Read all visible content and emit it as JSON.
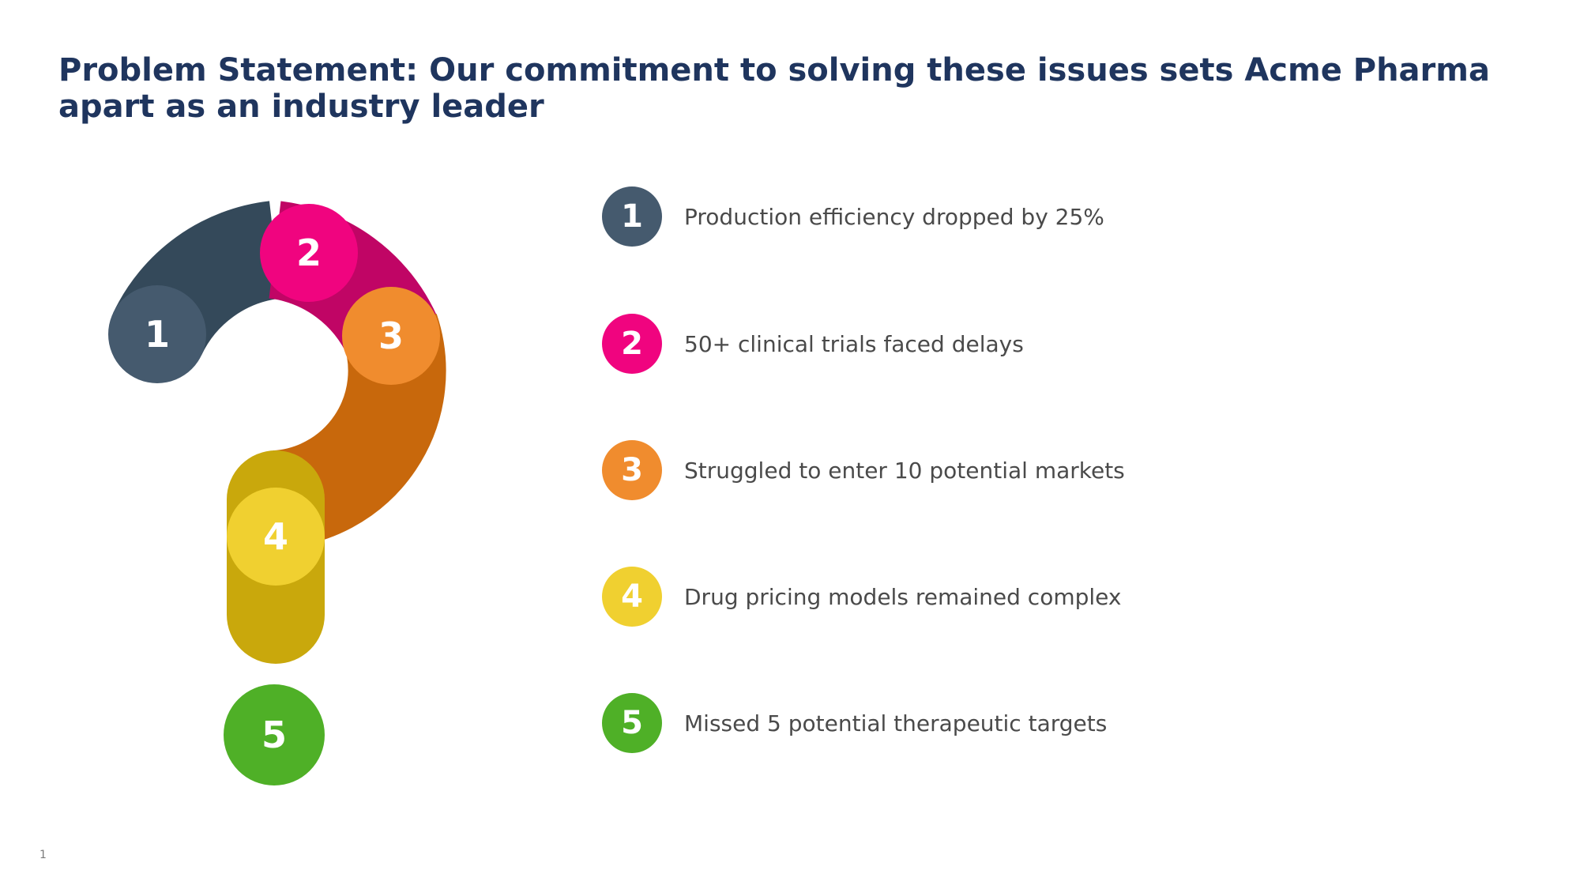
{
  "slide": {
    "title": "Problem Statement: Our commitment to solving these issues sets Acme Pharma apart as an industry leader",
    "page_number": "1"
  },
  "figure": {
    "shape": "question-mark",
    "segments": [
      {
        "number": "1",
        "color": "#455a6e",
        "band_color": "#34495a"
      },
      {
        "number": "2",
        "color": "#f0047f",
        "band_color": "#c00565"
      },
      {
        "number": "3",
        "color": "#f08c2e",
        "band_color": "#c8680c"
      },
      {
        "number": "4",
        "color": "#f0d030",
        "band_color": "#c9a80c"
      },
      {
        "number": "5",
        "color": "#4fb027",
        "band_color": "#4fb027"
      }
    ]
  },
  "items": [
    {
      "number": "1",
      "text": "Production efficiency dropped by 25%",
      "color": "#455a6e"
    },
    {
      "number": "2",
      "text": "50+ clinical trials faced delays",
      "color": "#f0047f"
    },
    {
      "number": "3",
      "text": "Struggled to enter 10 potential markets",
      "color": "#f08c2e"
    },
    {
      "number": "4",
      "text": "Drug pricing models remained complex",
      "color": "#f0d030"
    },
    {
      "number": "5",
      "text": "Missed 5 potential therapeutic targets",
      "color": "#4fb027"
    }
  ]
}
